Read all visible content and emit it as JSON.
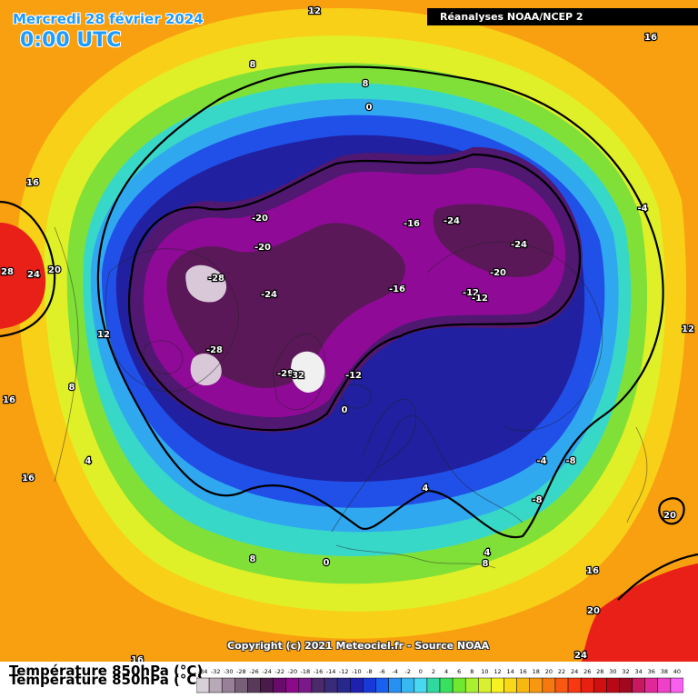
{
  "header": {
    "date": "Mercredi 28 février 2024",
    "time": "0:00 UTC",
    "source": "Réanalyses NOAA/NCEP 2"
  },
  "footer": {
    "copyright": "Copyright (c) 2021 Meteociel.fr - Source NOAA",
    "legend_title": "Température 850hPa (°C)"
  },
  "legend": {
    "ticks": [
      -34,
      -32,
      -30,
      -28,
      -26,
      -24,
      -22,
      -20,
      -18,
      -16,
      -14,
      -12,
      -10,
      -8,
      -6,
      -4,
      -2,
      0,
      2,
      4,
      6,
      8,
      10,
      12,
      14,
      16,
      18,
      20,
      22,
      24,
      26,
      28,
      30,
      32,
      34,
      36,
      38,
      40
    ],
    "colors": [
      "#d8d0d8",
      "#b8a8b8",
      "#988098",
      "#786078",
      "#5a3a5a",
      "#4a1a4a",
      "#6a0a6a",
      "#8a0a8a",
      "#7a1a8a",
      "#4a2a6a",
      "#3a2a7a",
      "#28288a",
      "#2020b0",
      "#1838d8",
      "#1860f0",
      "#2890f0",
      "#38b8f0",
      "#48d8f0",
      "#30d8a0",
      "#38e060",
      "#70e830",
      "#a8f030",
      "#d8f030",
      "#f8f020",
      "#f8d818",
      "#f8b810",
      "#f89810",
      "#f87810",
      "#f85810",
      "#f83810",
      "#e82010",
      "#d01010",
      "#b80818",
      "#a00820",
      "#c81860",
      "#e02898",
      "#f040c8",
      "#f860f0"
    ]
  },
  "map": {
    "zones": [
      {
        "type": "outer",
        "color": "#f8a010"
      },
      {
        "type": "ring",
        "color": "#f8d018"
      },
      {
        "type": "ring",
        "color": "#e0f028"
      },
      {
        "type": "ring",
        "color": "#80e038"
      },
      {
        "type": "ring",
        "color": "#38d8c8"
      },
      {
        "type": "ring",
        "color": "#30a8f0"
      },
      {
        "type": "ring",
        "color": "#2050e8"
      },
      {
        "type": "ring",
        "color": "#2020a0"
      },
      {
        "type": "ring",
        "color": "#501870"
      },
      {
        "type": "ring",
        "color": "#900a98"
      },
      {
        "type": "core",
        "color": "#5a1858"
      },
      {
        "type": "spot",
        "color": "#d8c8d8"
      },
      {
        "type": "spot",
        "color": "#f0f0f0"
      },
      {
        "type": "warm",
        "color": "#e82018"
      }
    ],
    "labels": [
      {
        "text": "12"
      },
      {
        "text": "8"
      },
      {
        "text": "8"
      },
      {
        "text": "0"
      },
      {
        "text": "16"
      },
      {
        "text": "16"
      },
      {
        "text": "28"
      },
      {
        "text": "24"
      },
      {
        "text": "20"
      },
      {
        "text": "12"
      },
      {
        "text": "-20"
      },
      {
        "text": "-20"
      },
      {
        "text": "-28"
      },
      {
        "text": "-24"
      },
      {
        "text": "-28"
      },
      {
        "text": "-28"
      },
      {
        "text": "-32"
      },
      {
        "text": "-16"
      },
      {
        "text": "-16"
      },
      {
        "text": "-24"
      },
      {
        "text": "-24"
      },
      {
        "text": "-20"
      },
      {
        "text": "-12"
      },
      {
        "text": "-12"
      },
      {
        "text": "-4"
      },
      {
        "text": "-12"
      },
      {
        "text": "0"
      },
      {
        "text": "8"
      },
      {
        "text": "4"
      },
      {
        "text": "-4"
      },
      {
        "text": "-8"
      },
      {
        "text": "-8"
      },
      {
        "text": "12"
      },
      {
        "text": "20"
      },
      {
        "text": "16"
      },
      {
        "text": "16"
      },
      {
        "text": "4"
      },
      {
        "text": "8"
      },
      {
        "text": "0"
      },
      {
        "text": "4"
      },
      {
        "text": "8"
      },
      {
        "text": "16"
      },
      {
        "text": "20"
      },
      {
        "text": "24"
      },
      {
        "text": "16"
      }
    ]
  }
}
